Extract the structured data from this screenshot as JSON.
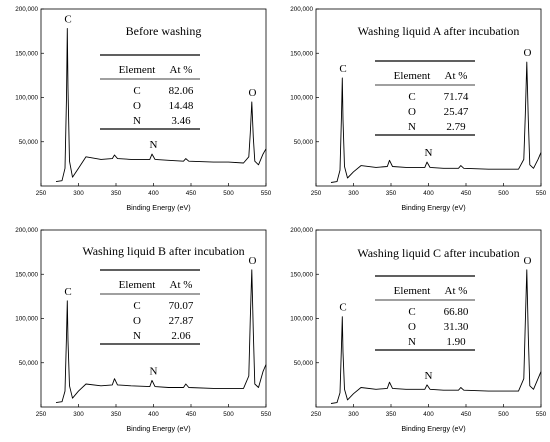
{
  "chart_data": [
    {
      "type": "line",
      "title": "Before washing",
      "xlabel": "Binding Energy (eV)",
      "ylabel": "",
      "xlim": [
        250,
        550
      ],
      "ylim": [
        0,
        200000
      ],
      "x_ticks": [
        250,
        300,
        350,
        400,
        450,
        500,
        550
      ],
      "y_ticks": [
        "50,000",
        "100,000",
        "150,000",
        "200,000"
      ],
      "grid": false,
      "x": [
        270,
        278,
        282,
        284,
        285,
        286,
        288,
        292,
        300,
        310,
        330,
        345,
        348,
        352,
        370,
        395,
        398,
        402,
        420,
        440,
        443,
        447,
        480,
        500,
        520,
        527,
        529,
        531,
        533,
        535,
        540,
        546,
        550
      ],
      "y": [
        5000,
        6000,
        20000,
        100000,
        178000,
        110000,
        28000,
        10000,
        20000,
        33000,
        30000,
        31000,
        35000,
        31000,
        30000,
        30000,
        36000,
        30000,
        29000,
        28000,
        31000,
        28000,
        27000,
        27000,
        26000,
        33000,
        60000,
        95000,
        55000,
        28000,
        24000,
        36000,
        42000
      ],
      "peak_labels": [
        {
          "text": "C",
          "x": 286,
          "y": 178000
        },
        {
          "text": "N",
          "x": 400,
          "y": 36000
        },
        {
          "text": "O",
          "x": 532,
          "y": 95000
        }
      ],
      "table": {
        "headers": [
          "Element",
          "At %"
        ],
        "rows": [
          [
            "C",
            "82.06"
          ],
          [
            "O",
            "14.48"
          ],
          [
            "N",
            "3.46"
          ]
        ]
      }
    },
    {
      "type": "line",
      "title": "Washing liquid A after incubation",
      "xlabel": "Binding Energy (eV)",
      "ylabel": "",
      "xlim": [
        250,
        550
      ],
      "ylim": [
        0,
        200000
      ],
      "x_ticks": [
        250,
        300,
        350,
        400,
        450,
        500,
        550
      ],
      "y_ticks": [
        "50,000",
        "100,000",
        "150,000",
        "200,000"
      ],
      "grid": false,
      "x": [
        270,
        278,
        282,
        284,
        285,
        286,
        288,
        292,
        300,
        310,
        330,
        345,
        348,
        352,
        370,
        395,
        398,
        402,
        420,
        440,
        443,
        447,
        480,
        500,
        520,
        527,
        529,
        531,
        533,
        535,
        540,
        546,
        550
      ],
      "y": [
        4000,
        5000,
        18000,
        80000,
        122000,
        75000,
        22000,
        9000,
        16000,
        23000,
        21000,
        22000,
        29000,
        22000,
        21000,
        21000,
        27000,
        21000,
        20000,
        20000,
        23000,
        20000,
        19000,
        19000,
        19000,
        30000,
        80000,
        140000,
        75000,
        24000,
        20000,
        30000,
        38000
      ],
      "peak_labels": [
        {
          "text": "C",
          "x": 286,
          "y": 122000
        },
        {
          "text": "N",
          "x": 400,
          "y": 27000
        },
        {
          "text": "O",
          "x": 532,
          "y": 140000
        }
      ],
      "table": {
        "headers": [
          "Element",
          "At %"
        ],
        "rows": [
          [
            "C",
            "71.74"
          ],
          [
            "O",
            "25.47"
          ],
          [
            "N",
            "2.79"
          ]
        ]
      }
    },
    {
      "type": "line",
      "title": "Washing liquid B after incubation",
      "xlabel": "Binding Energy (eV)",
      "ylabel": "",
      "xlim": [
        250,
        550
      ],
      "ylim": [
        0,
        200000
      ],
      "x_ticks": [
        250,
        300,
        350,
        400,
        450,
        500,
        550
      ],
      "y_ticks": [
        "50,000",
        "100,000",
        "150,000",
        "200,000"
      ],
      "grid": false,
      "x": [
        270,
        278,
        282,
        284,
        285,
        286,
        288,
        292,
        300,
        310,
        330,
        345,
        348,
        352,
        370,
        395,
        398,
        402,
        420,
        440,
        443,
        447,
        480,
        500,
        520,
        527,
        529,
        531,
        533,
        535,
        540,
        546,
        550
      ],
      "y": [
        5000,
        6000,
        18000,
        80000,
        120000,
        75000,
        24000,
        10000,
        18000,
        26000,
        24000,
        25000,
        32000,
        25000,
        24000,
        23000,
        30000,
        23000,
        22000,
        22000,
        26000,
        22000,
        21000,
        21000,
        21000,
        35000,
        100000,
        155000,
        85000,
        26000,
        22000,
        40000,
        48000
      ],
      "peak_labels": [
        {
          "text": "C",
          "x": 286,
          "y": 120000
        },
        {
          "text": "N",
          "x": 400,
          "y": 30000
        },
        {
          "text": "O",
          "x": 532,
          "y": 155000
        }
      ],
      "table": {
        "headers": [
          "Element",
          "At %"
        ],
        "rows": [
          [
            "C",
            "70.07"
          ],
          [
            "O",
            "27.87"
          ],
          [
            "N",
            "2.06"
          ]
        ]
      }
    },
    {
      "type": "line",
      "title": "Washing liquid C after incubation",
      "xlabel": "Binding Energy (eV)",
      "ylabel": "",
      "xlim": [
        250,
        550
      ],
      "ylim": [
        0,
        200000
      ],
      "x_ticks": [
        250,
        300,
        350,
        400,
        450,
        500,
        550
      ],
      "y_ticks": [
        "50,000",
        "100,000",
        "150,000",
        "200,000"
      ],
      "grid": false,
      "x": [
        270,
        278,
        282,
        284,
        285,
        286,
        288,
        292,
        300,
        310,
        330,
        345,
        348,
        352,
        370,
        395,
        398,
        402,
        420,
        440,
        443,
        447,
        480,
        500,
        520,
        527,
        529,
        531,
        533,
        535,
        540,
        546,
        550
      ],
      "y": [
        4000,
        5000,
        16000,
        70000,
        102000,
        62000,
        20000,
        8000,
        15000,
        22000,
        20000,
        21000,
        28000,
        21000,
        20000,
        20000,
        25000,
        20000,
        19000,
        19000,
        22000,
        19000,
        18000,
        18000,
        18000,
        32000,
        95000,
        155000,
        80000,
        24000,
        20000,
        32000,
        40000
      ],
      "peak_labels": [
        {
          "text": "C",
          "x": 286,
          "y": 102000
        },
        {
          "text": "N",
          "x": 400,
          "y": 25000
        },
        {
          "text": "O",
          "x": 532,
          "y": 155000
        }
      ],
      "table": {
        "headers": [
          "Element",
          "At %"
        ],
        "rows": [
          [
            "C",
            "66.80"
          ],
          [
            "O",
            "31.30"
          ],
          [
            "N",
            "1.90"
          ]
        ]
      }
    }
  ]
}
